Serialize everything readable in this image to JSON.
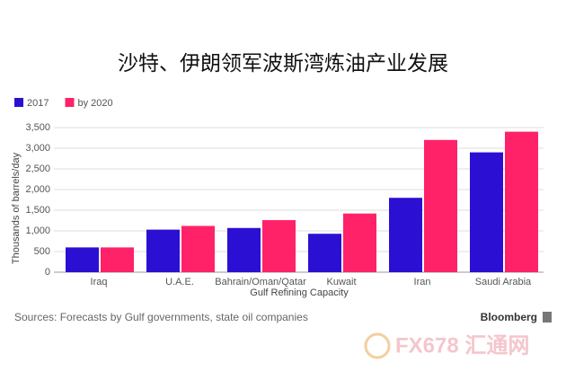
{
  "chart_data": {
    "type": "bar",
    "title": "沙特、伊朗领军波斯湾炼油产业发展",
    "y_label": "Thousands of barrels/day",
    "x_label": "Gulf Refining Capacity",
    "categories": [
      "Iraq",
      "U.A.E.",
      "Bahrain/Oman/Qatar",
      "Kuwait",
      "Iran",
      "Saudi Arabia"
    ],
    "series": [
      {
        "name": "2017",
        "color": "#2b10d4",
        "values": [
          600,
          1030,
          1070,
          930,
          1800,
          2900
        ]
      },
      {
        "name": "by 2020",
        "color": "#ff2268",
        "values": [
          600,
          1120,
          1260,
          1420,
          3200,
          3400
        ]
      }
    ],
    "ylim": [
      0,
      3500
    ],
    "yticks": [
      0,
      500,
      {
        "value": 1000,
        "label": "1,000"
      },
      {
        "value": 1500,
        "label": "1,500"
      },
      {
        "value": 2000,
        "label": "2,000"
      },
      {
        "value": 2500,
        "label": "2,500"
      },
      {
        "value": 3000,
        "label": "3,000"
      },
      {
        "value": 3500,
        "label": "3,500"
      }
    ],
    "grid": true,
    "legend": "top-left",
    "source": "Sources: Forecasts by Gulf governments, state oil companies",
    "brand": "Bloomberg",
    "watermark": "FX678 汇通网"
  }
}
